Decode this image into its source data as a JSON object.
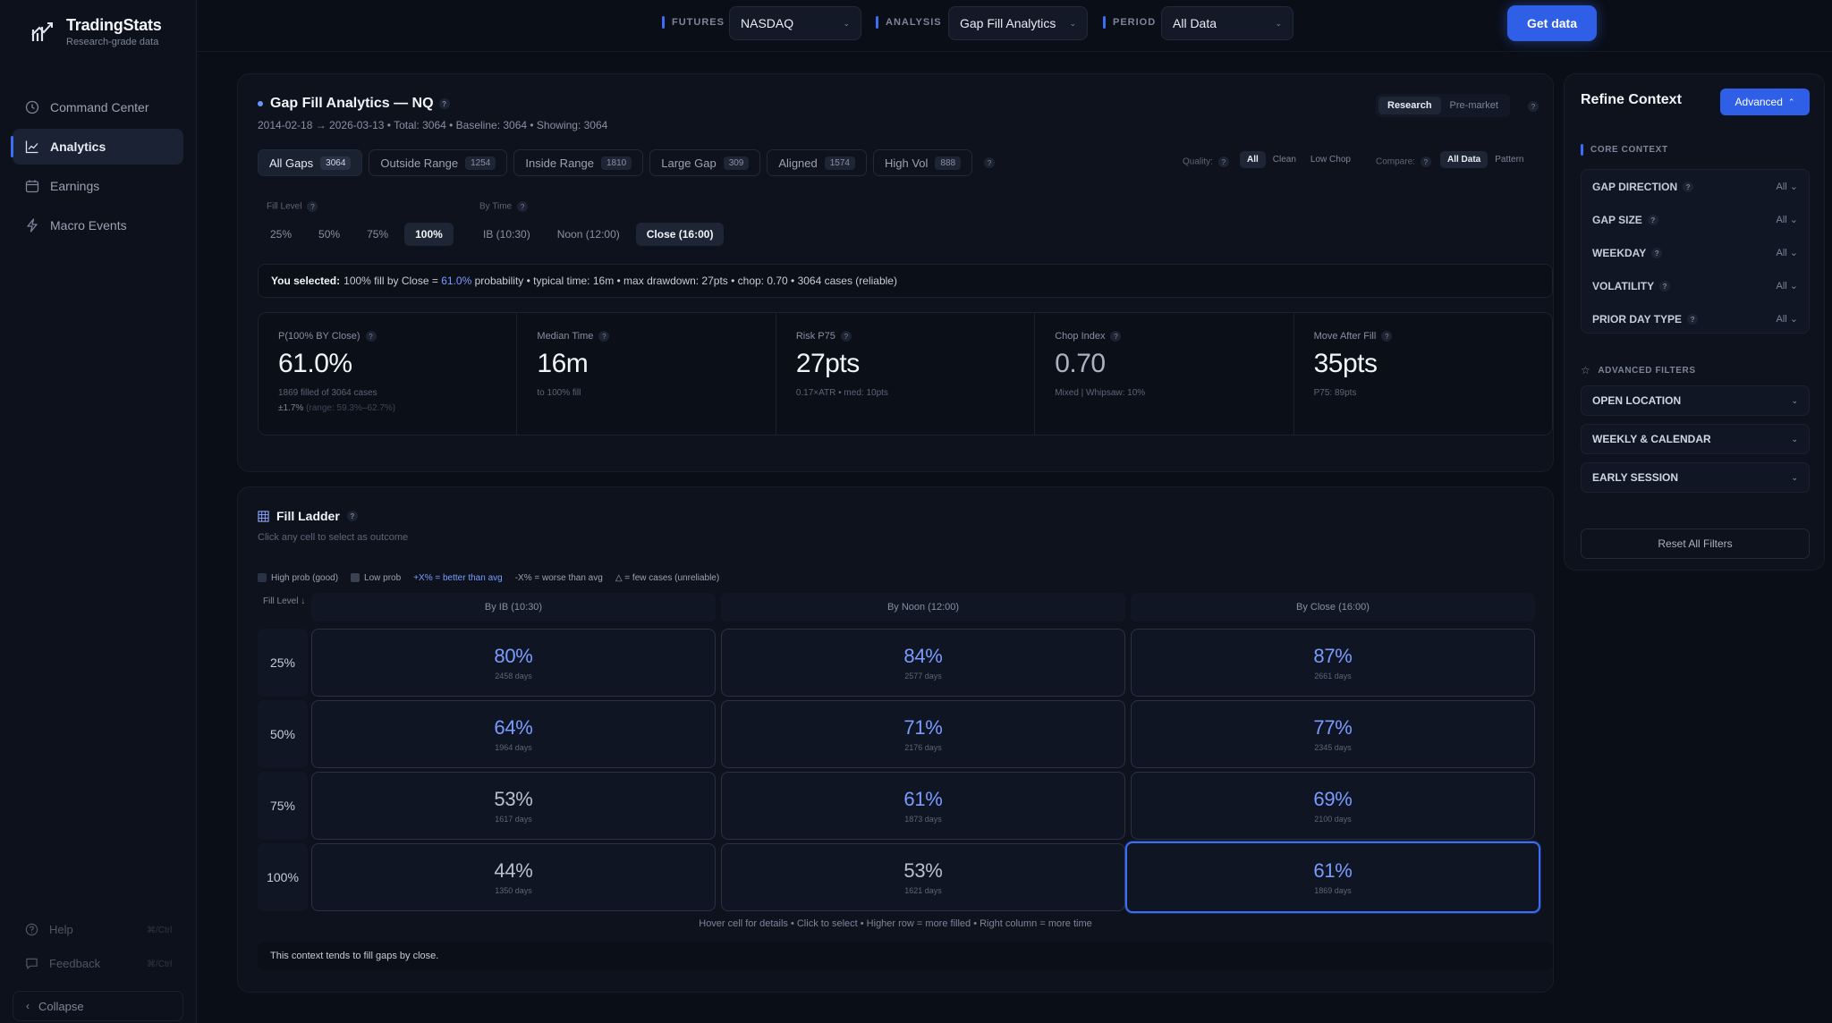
{
  "app": {
    "name": "TradingStats",
    "tagline": "Research-grade data"
  },
  "nav": [
    {
      "label": "Command Center",
      "icon": "clock-icon"
    },
    {
      "label": "Analytics",
      "icon": "chart-line-icon",
      "active": true
    },
    {
      "label": "Earnings",
      "icon": "calendar-icon"
    },
    {
      "label": "Macro Events",
      "icon": "bolt-icon"
    }
  ],
  "footer_nav": {
    "help": {
      "label": "Help",
      "shortcut": "⌘/Ctrl"
    },
    "feedback": {
      "label": "Feedback",
      "shortcut": "⌘/Ctrl"
    },
    "collapse": "Collapse"
  },
  "topbar": {
    "futures_label": "FUTURES",
    "futures_value": "NASDAQ",
    "analysis_label": "ANALYSIS",
    "analysis_value": "Gap Fill Analytics",
    "period_label": "PERIOD",
    "period_value": "All Data",
    "get_data": "Get data"
  },
  "gap_fill": {
    "title": "Gap Fill Analytics — NQ",
    "subtitle": "2014-02-18 → 2026-03-13 • Total: 3064 • Baseline: 3064 • Showing: 3064",
    "mode": {
      "research": "Research",
      "premarket": "Pre-market"
    },
    "tabs": [
      {
        "label": "All Gaps",
        "count": "3064",
        "active": true
      },
      {
        "label": "Outside Range",
        "count": "1254"
      },
      {
        "label": "Inside Range",
        "count": "1810"
      },
      {
        "label": "Large Gap",
        "count": "309"
      },
      {
        "label": "Aligned",
        "count": "1574"
      },
      {
        "label": "High Vol",
        "count": "888"
      }
    ],
    "quality": {
      "label": "Quality:",
      "options": [
        "All",
        "Clean",
        "Low Chop"
      ]
    },
    "compare": {
      "label": "Compare:",
      "options": [
        "All Data",
        "Pattern"
      ]
    },
    "fill_level": {
      "label": "Fill Level",
      "options": [
        "25%",
        "50%",
        "75%",
        "100%"
      ]
    },
    "by_time": {
      "label": "By Time",
      "options": [
        "IB (10:30)",
        "Noon (12:00)",
        "Close (16:00)"
      ]
    },
    "selected": {
      "prefix": "You selected:",
      "pre": "100% fill by Close =",
      "highlight": "61.0%",
      "post": "probability • typical time: 16m • max drawdown: 27pts • chop: 0.70 • 3064 cases (reliable)"
    },
    "metrics": [
      {
        "label": "P(100% BY Close)",
        "value": "61.0%",
        "note": "1869 filled of 3064 cases",
        "note2": "±1.7%",
        "note2_faint": "(range: 59.3%–62.7%)"
      },
      {
        "label": "Median Time",
        "value": "16m",
        "note": "to 100% fill"
      },
      {
        "label": "Risk P75",
        "value": "27pts",
        "note": "0.17×ATR • med: 10pts"
      },
      {
        "label": "Chop Index",
        "value": "0.70",
        "note": "Mixed | Whipsaw: 10%"
      },
      {
        "label": "Move After Fill",
        "value": "35pts",
        "note": "P75: 89pts"
      }
    ]
  },
  "ladder": {
    "title": "Fill Ladder",
    "subtitle": "Click any cell to select as outcome",
    "legend": {
      "good": "High prob (good)",
      "low": "Low prob",
      "better": "+X% = better than avg",
      "worse": "-X% = worse than avg",
      "few": "= few cases (unreliable)"
    },
    "axis": "Fill Level ↓",
    "columns": [
      "By IB (10:30)",
      "By Noon (12:00)",
      "By Close (16:00)"
    ],
    "rows": [
      {
        "level": "25%",
        "cells": [
          {
            "pct": "80%",
            "days": "2458 days",
            "hi": true
          },
          {
            "pct": "84%",
            "days": "2577 days",
            "hi": true
          },
          {
            "pct": "87%",
            "days": "2661 days",
            "hi": true
          }
        ]
      },
      {
        "level": "50%",
        "cells": [
          {
            "pct": "64%",
            "days": "1964 days",
            "hi": true
          },
          {
            "pct": "71%",
            "days": "2176 days",
            "hi": true
          },
          {
            "pct": "77%",
            "days": "2345 days",
            "hi": true
          }
        ]
      },
      {
        "level": "75%",
        "cells": [
          {
            "pct": "53%",
            "days": "1617 days",
            "hi": false
          },
          {
            "pct": "61%",
            "days": "1873 days",
            "hi": true
          },
          {
            "pct": "69%",
            "days": "2100 days",
            "hi": true
          }
        ]
      },
      {
        "level": "100%",
        "cells": [
          {
            "pct": "44%",
            "days": "1350 days",
            "hi": false
          },
          {
            "pct": "53%",
            "days": "1621 days",
            "hi": false
          },
          {
            "pct": "61%",
            "days": "1869 days",
            "hi": true,
            "selected": true
          }
        ]
      }
    ],
    "hint": "Hover cell for details • Click to select • Higher row = more filled • Right column = more time",
    "context_note": "This context tends to fill gaps by close."
  },
  "refine": {
    "title": "Refine Context",
    "advanced": "Advanced",
    "core_label": "CORE CONTEXT",
    "core": [
      {
        "label": "GAP DIRECTION",
        "value": "All"
      },
      {
        "label": "GAP SIZE",
        "value": "All"
      },
      {
        "label": "WEEKDAY",
        "value": "All"
      },
      {
        "label": "VOLATILITY",
        "value": "All"
      },
      {
        "label": "PRIOR DAY TYPE",
        "value": "All"
      }
    ],
    "advanced_label": "ADVANCED FILTERS",
    "accordions": [
      "OPEN LOCATION",
      "WEEKLY & CALENDAR",
      "EARLY SESSION"
    ],
    "reset": "Reset All Filters"
  },
  "colors": {
    "accent": "#3b6ef5",
    "highlight_text": "#7a9cff",
    "background": "#0a0e17"
  }
}
